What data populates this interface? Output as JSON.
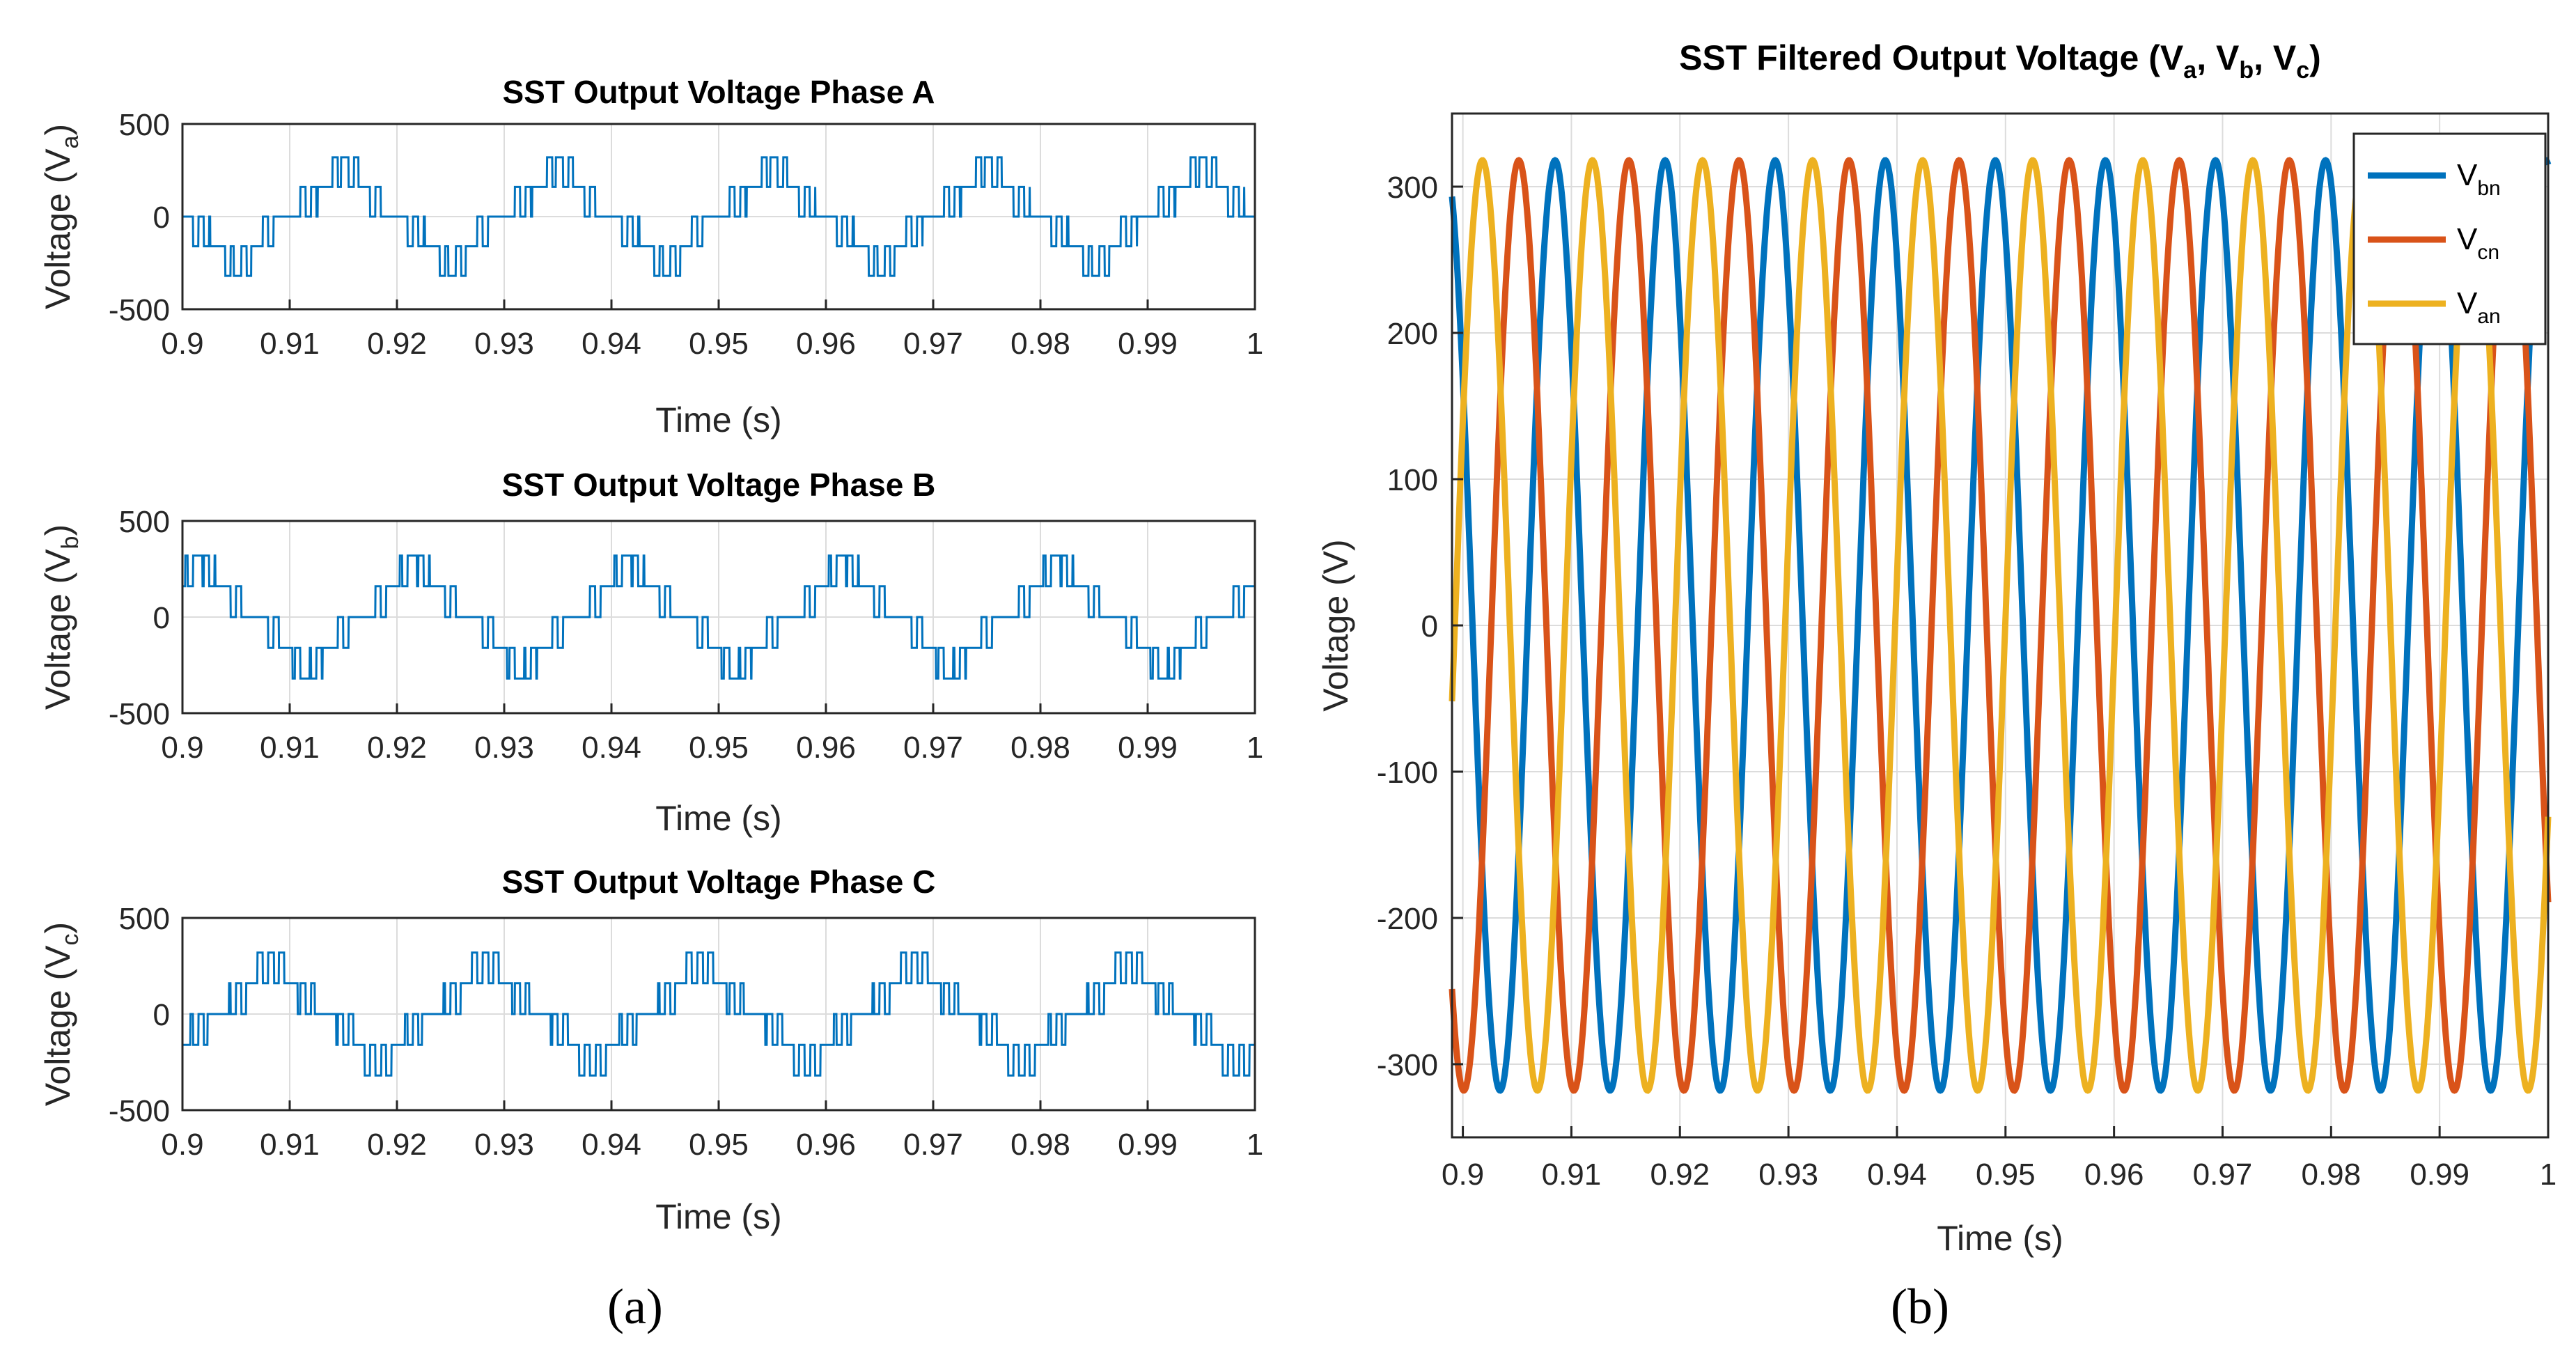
{
  "figure": {
    "label_a": "(a)",
    "label_b": "(b)"
  },
  "colors": {
    "phase": "#0072BD",
    "vbn": "#0072BD",
    "vcn": "#D95319",
    "van": "#EDB120",
    "grid": "#DCDCDC",
    "axis": "#262626"
  },
  "chart_data": [
    {
      "type": "line",
      "title": "SST Output Voltage Phase A",
      "ylabel": "Voltage (V",
      "ylabel_sub": "a",
      "ylabel_close": ")",
      "xlabel": "Time (s)",
      "xlim": [
        0.9,
        1.0
      ],
      "ylim": [
        -500,
        500
      ],
      "xticks": [
        "0.9",
        "0.91",
        "0.92",
        "0.93",
        "0.94",
        "0.95",
        "0.96",
        "0.97",
        "0.98",
        "0.99",
        "1"
      ],
      "yticks": [
        "500",
        "0",
        "-500"
      ],
      "grid": true,
      "waveform": "multilevel-pwm",
      "frequency_hz": 50,
      "phase_deg": 180,
      "step_levels_v": [
        160,
        320
      ]
    },
    {
      "type": "line",
      "title": "SST Output Voltage Phase B",
      "ylabel": "Voltage (V",
      "ylabel_sub": "b",
      "ylabel_close": ")",
      "xlabel": "Time (s)",
      "xlim": [
        0.9,
        1.0
      ],
      "ylim": [
        -500,
        500
      ],
      "xticks": [
        "0.9",
        "0.91",
        "0.92",
        "0.93",
        "0.94",
        "0.95",
        "0.96",
        "0.97",
        "0.98",
        "0.99",
        "1"
      ],
      "yticks": [
        "500",
        "0",
        "-500"
      ],
      "grid": true,
      "waveform": "multilevel-pwm",
      "frequency_hz": 50,
      "phase_deg": 60,
      "step_levels_v": [
        160,
        320
      ]
    },
    {
      "type": "line",
      "title": "SST Output Voltage Phase C",
      "ylabel": "Voltage (V",
      "ylabel_sub": "c",
      "ylabel_close": ")",
      "xlabel": "Time (s)",
      "xlim": [
        0.9,
        1.0
      ],
      "ylim": [
        -500,
        500
      ],
      "xticks": [
        "0.9",
        "0.91",
        "0.92",
        "0.93",
        "0.94",
        "0.95",
        "0.96",
        "0.97",
        "0.98",
        "0.99",
        "1"
      ],
      "yticks": [
        "500",
        "0",
        "-500"
      ],
      "grid": true,
      "waveform": "multilevel-pwm",
      "frequency_hz": 50,
      "phase_deg": 300,
      "step_levels_v": [
        160,
        320
      ]
    },
    {
      "type": "line",
      "title_parts": [
        "SST Filtered Output Voltage (V",
        "a",
        ", V",
        "b",
        ", V",
        "c",
        ")"
      ],
      "ylabel": "Voltage (V)",
      "xlabel": "Time (s)",
      "xlim": [
        0.899,
        1.0
      ],
      "ylim": [
        -350,
        350
      ],
      "xticks": [
        0.9,
        0.91,
        0.92,
        0.93,
        0.94,
        0.95,
        0.96,
        0.97,
        0.98,
        0.99,
        1.0
      ],
      "xtick_labels": [
        "0.9",
        "0.91",
        "0.92",
        "0.93",
        "0.94",
        "0.95",
        "0.96",
        "0.97",
        "0.98",
        "0.99",
        "1"
      ],
      "yticks": [
        300,
        200,
        100,
        0,
        -100,
        -200,
        -300
      ],
      "ytick_labels": [
        "300",
        "200",
        "100",
        "0",
        "-100",
        "-200",
        "-300"
      ],
      "grid": true,
      "legend_position": "top-right",
      "series": [
        {
          "name": "V",
          "sub": "bn",
          "amplitude": 318,
          "frequency_hz": 98.6,
          "peak_time": 0.9085,
          "color_key": "vbn"
        },
        {
          "name": "V",
          "sub": "cn",
          "amplitude": 318,
          "frequency_hz": 98.6,
          "peak_time": 0.9153,
          "color_key": "vcn"
        },
        {
          "name": "V",
          "sub": "an",
          "amplitude": 318,
          "frequency_hz": 98.6,
          "peak_time": 0.9018,
          "color_key": "van"
        }
      ]
    }
  ]
}
